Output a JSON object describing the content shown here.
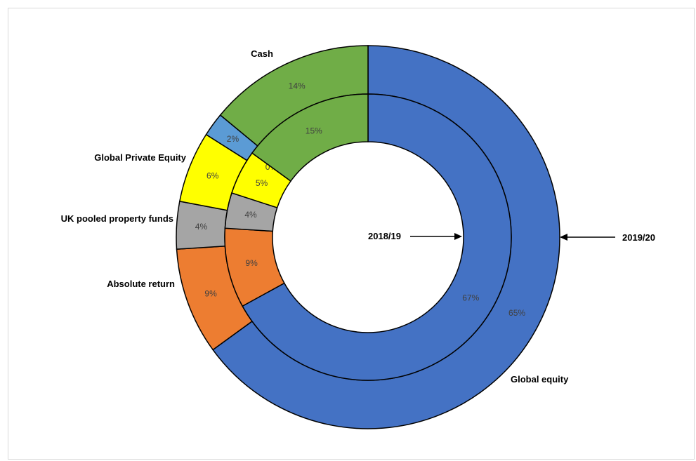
{
  "chart_data": {
    "type": "donut",
    "title": "",
    "categories": [
      "Global equity",
      "Absolute return",
      "UK pooled property funds",
      "Global Private Equity",
      "",
      "Cash"
    ],
    "colors": [
      "#4472C4",
      "#ED7D31",
      "#A5A5A5",
      "#FFFF00",
      "#5B9BD5",
      "#70AD47"
    ],
    "series": [
      {
        "name": "2019/20",
        "ring": "outer",
        "values": [
          65,
          9,
          4,
          6,
          2,
          14
        ],
        "labels": [
          "65%",
          "9%",
          "4%",
          "6%",
          "2%",
          "14%"
        ]
      },
      {
        "name": "2018/19",
        "ring": "inner",
        "values": [
          67,
          9,
          4,
          5,
          0,
          15
        ],
        "labels": [
          "67%",
          "9%",
          "4%",
          "5%",
          "0%",
          "15%"
        ]
      }
    ],
    "legend": "none"
  }
}
